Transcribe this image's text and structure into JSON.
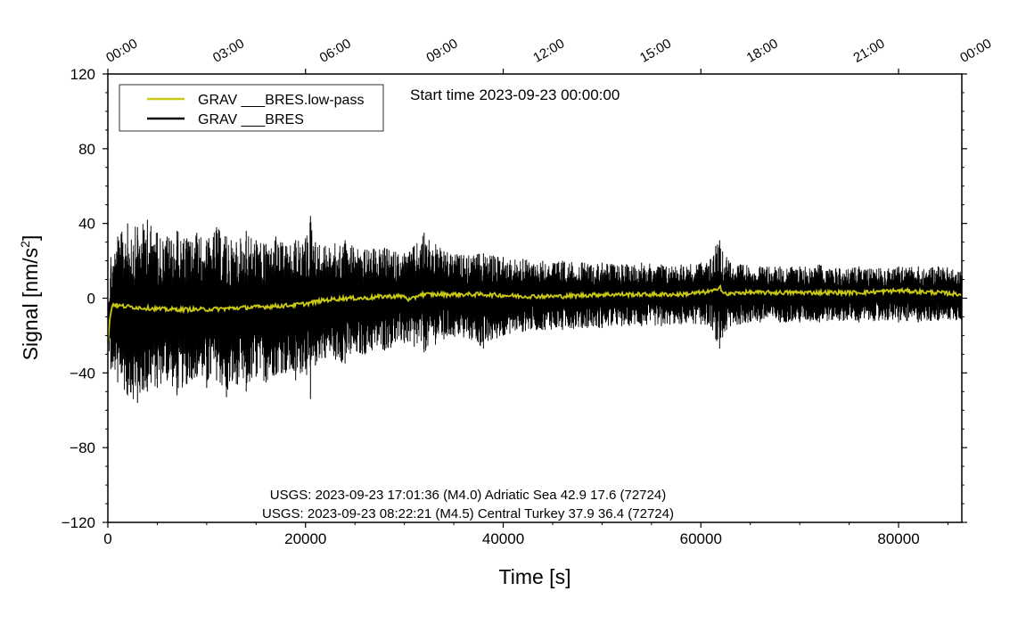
{
  "chart_data": {
    "type": "line",
    "title": "Start time 2023-09-23 00:00:00",
    "xlabel": "Time [s]",
    "ylabel": "Signal [nm/s",
    "ylabel_sup": "2",
    "ylabel_close": "]",
    "xlim": [
      0,
      86400
    ],
    "ylim": [
      -120,
      120
    ],
    "x_ticks": [
      {
        "value": 0,
        "label": "0"
      },
      {
        "value": 20000,
        "label": "20000"
      },
      {
        "value": 40000,
        "label": "40000"
      },
      {
        "value": 60000,
        "label": "60000"
      },
      {
        "value": 80000,
        "label": "80000"
      }
    ],
    "y_ticks": [
      {
        "value": 120,
        "label": "120"
      },
      {
        "value": 80,
        "label": "80"
      },
      {
        "value": 40,
        "label": "40"
      },
      {
        "value": 0,
        "label": "0"
      },
      {
        "value": -40,
        "label": "−40"
      },
      {
        "value": -80,
        "label": "−80"
      },
      {
        "value": -120,
        "label": "−120"
      }
    ],
    "top_ticks": [
      {
        "value": 0,
        "label": "00:00"
      },
      {
        "value": 10800,
        "label": "03:00"
      },
      {
        "value": 21600,
        "label": "06:00"
      },
      {
        "value": 32400,
        "label": "09:00"
      },
      {
        "value": 43200,
        "label": "12:00"
      },
      {
        "value": 54000,
        "label": "15:00"
      },
      {
        "value": 64800,
        "label": "18:00"
      },
      {
        "value": 75600,
        "label": "21:00"
      },
      {
        "value": 86400,
        "label": "00:00"
      }
    ],
    "legend_position": "top-left",
    "grid": false,
    "series": [
      {
        "name": "GRAV ___BRES",
        "color": "#000000",
        "kind": "envelope",
        "x": [
          0,
          300,
          1000,
          2000,
          3000,
          4000,
          5000,
          6000,
          7000,
          8000,
          9000,
          10000,
          11000,
          12000,
          13000,
          14000,
          15000,
          16000,
          17000,
          18000,
          19000,
          20000,
          20500,
          21000,
          22000,
          24000,
          26000,
          28000,
          30000,
          31000,
          32000,
          34000,
          36000,
          38000,
          40000,
          42000,
          44000,
          46000,
          48000,
          50000,
          52000,
          54000,
          56000,
          58000,
          60000,
          61000,
          61500,
          61900,
          62200,
          62600,
          63000,
          64000,
          66000,
          68000,
          70000,
          72000,
          74000,
          76000,
          78000,
          80000,
          82000,
          84000,
          86400
        ],
        "upper": [
          0,
          22,
          33,
          40,
          38,
          42,
          35,
          33,
          36,
          32,
          35,
          31,
          38,
          33,
          30,
          36,
          31,
          29,
          33,
          28,
          31,
          32,
          44,
          30,
          28,
          31,
          26,
          27,
          24,
          28,
          35,
          25,
          23,
          24,
          22,
          21,
          20,
          20,
          19,
          19,
          18,
          19,
          18,
          18,
          19,
          21,
          28,
          31,
          25,
          22,
          19,
          18,
          17,
          17,
          17,
          18,
          16,
          17,
          16,
          17,
          17,
          17,
          16
        ],
        "lower": [
          -25,
          -38,
          -45,
          -52,
          -56,
          -50,
          -48,
          -44,
          -52,
          -46,
          -42,
          -48,
          -44,
          -53,
          -46,
          -50,
          -42,
          -45,
          -41,
          -40,
          -44,
          -38,
          -54,
          -36,
          -32,
          -35,
          -30,
          -28,
          -24,
          -26,
          -29,
          -22,
          -21,
          -27,
          -20,
          -18,
          -17,
          -17,
          -16,
          -16,
          -15,
          -15,
          -15,
          -14,
          -14,
          -15,
          -22,
          -27,
          -21,
          -17,
          -15,
          -14,
          -13,
          -13,
          -13,
          -13,
          -12,
          -13,
          -12,
          -13,
          -13,
          -12,
          -12
        ]
      },
      {
        "name": "GRAV ___BRES.low-pass",
        "color": "#c9c914",
        "kind": "line",
        "x": [
          0,
          200,
          500,
          1000,
          3000,
          6000,
          10000,
          14000,
          18000,
          20000,
          22000,
          24000,
          26000,
          28000,
          30000,
          30500,
          31000,
          31500,
          34000,
          38000,
          42000,
          46000,
          50000,
          54000,
          58000,
          60000,
          61500,
          61900,
          62200,
          62600,
          64000,
          68000,
          72000,
          76000,
          80000,
          84000,
          86400
        ],
        "y": [
          -25,
          -10,
          -3,
          -4,
          -5,
          -6,
          -6,
          -5,
          -4,
          -3,
          -1,
          0,
          0,
          1,
          1,
          -1,
          0,
          2,
          2,
          2,
          1,
          1,
          2,
          2,
          2,
          3,
          4,
          7,
          3,
          2,
          3,
          3,
          3,
          3,
          4,
          3,
          2
        ]
      }
    ],
    "annotations": [
      "USGS: 2023-09-23 17:01:36 (M4.0) Adriatic Sea 42.9 17.6 (72724)",
      "USGS: 2023-09-23 08:22:21 (M4.5) Central Turkey 37.9 36.4 (72724)"
    ]
  }
}
